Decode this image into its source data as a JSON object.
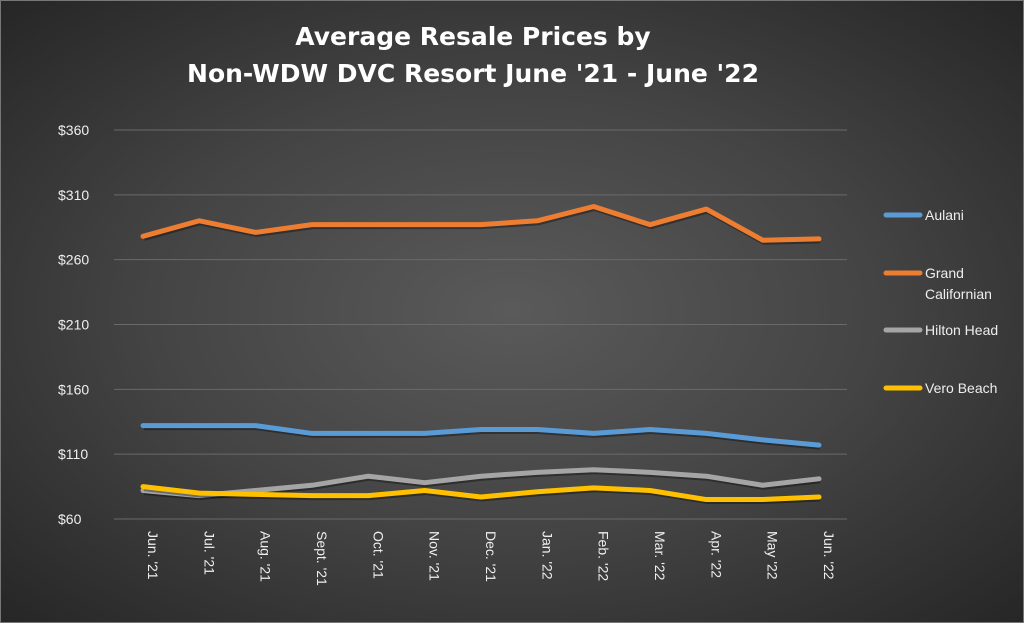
{
  "chart_data": {
    "type": "line",
    "title_lines": [
      "Average Resale Prices by",
      "Non-WDW DVC Resort June '21 - June '22"
    ],
    "categories": [
      "Jun. '21",
      "Jul. '21",
      "Aug. '21",
      "Sept. '21",
      "Oct. '21",
      "Nov. '21",
      "Dec. '21",
      "Jan. '22",
      "Feb. '22",
      "Mar. '22",
      "Apr. '22",
      "May '22",
      "Jun. '22"
    ],
    "yticks": [
      "$60",
      "$110",
      "$160",
      "$210",
      "$260",
      "$310",
      "$360"
    ],
    "ylim": [
      60,
      360
    ],
    "grid": true,
    "legend_position": "right",
    "series": [
      {
        "name": "Aulani",
        "color": "#5b9bd5",
        "values": [
          132,
          132,
          132,
          126,
          126,
          126,
          129,
          129,
          126,
          129,
          126,
          121,
          117
        ]
      },
      {
        "name": "Grand Californian",
        "color": "#ed7d31",
        "values": [
          278,
          290,
          281,
          287,
          287,
          287,
          287,
          290,
          301,
          287,
          299,
          275,
          276
        ]
      },
      {
        "name": "Hilton Head",
        "color": "#a5a5a5",
        "values": [
          82,
          78,
          82,
          86,
          93,
          88,
          93,
          96,
          98,
          96,
          93,
          86,
          91
        ]
      },
      {
        "name": "Vero Beach",
        "color": "#ffc000",
        "values": [
          85,
          80,
          79,
          78,
          78,
          82,
          77,
          81,
          84,
          82,
          75,
          75,
          77
        ]
      }
    ]
  }
}
